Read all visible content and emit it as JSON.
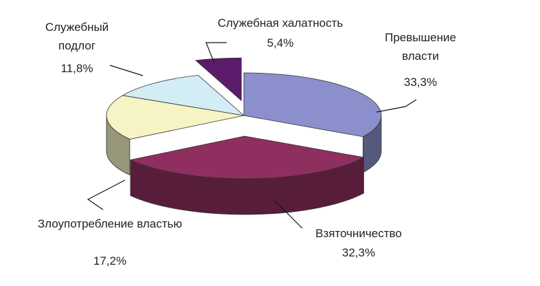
{
  "chart_data": {
    "type": "pie3d",
    "categories": [
      "Превышение власти",
      "Взяточничество",
      "Злоупотребление властью",
      "Служебный подлог",
      "Служебная халатность"
    ],
    "values": [
      33.3,
      32.3,
      17.2,
      11.8,
      5.4
    ],
    "value_labels": [
      "33,3%",
      "32,3%",
      "17,2%",
      "11,8%",
      "5,4%"
    ],
    "colors": [
      "#8b8fcb",
      "#8f2f60",
      "#f6f3c4",
      "#d3edf4",
      "#5c1c6c"
    ]
  }
}
